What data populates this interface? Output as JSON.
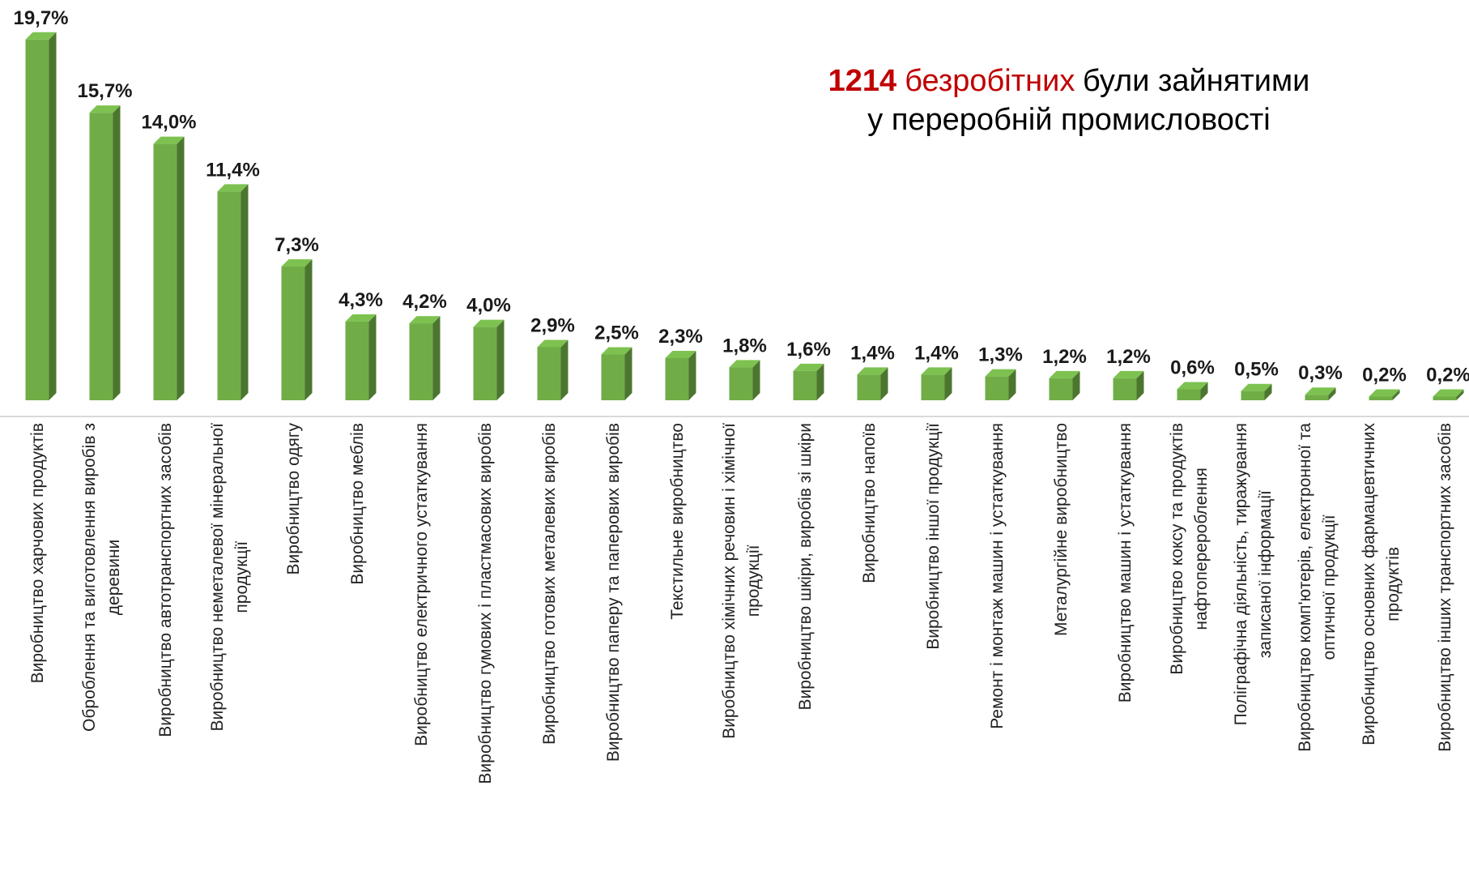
{
  "chart_data": {
    "type": "bar3d",
    "title_parts": [
      "1214",
      "безробітних",
      "були зайнятими",
      "у переробній промисловості"
    ],
    "title_colors": [
      "#c00000",
      "#c00000",
      "#000000",
      "#000000"
    ],
    "color": "#70ad47",
    "categories": [
      "Виробництво харчових продуктів",
      "Оброблення та виготовлення виробів з\nдеревини",
      "Виробництво автотранспортних засобів",
      "Виробництво неметалевої мінеральної\nпродукції",
      "Виробництво одягу",
      "Виробництво меблів",
      "Виробництво електричного устаткування",
      "Виробництво гумових і пластмасових виробів",
      "Виробництво готових металевих виробів",
      "Виробництво паперу та паперових виробів",
      "Текстильне виробництво",
      "Виробництво хімічних речовин і хімічної\nпродукції",
      "Виробництво шкіри, виробів зі шкіри",
      "Виробництво напоїв",
      "Виробництво іншої продукції",
      "Ремонт і монтаж машин і устаткування",
      "Металургійне виробництво",
      "Виробництво машин і устаткування",
      "Виробництво коксу та продуктів\nнафтоперероблення",
      "Поліграфічна діяльність, тиражування\nзаписаної інформації",
      "Виробництво комп'ютерів, електронної та\nоптичної продукції",
      "Виробництво основних фармацевтичних\nпродуктів",
      "Виробництво інших транспортних засобів"
    ],
    "values": [
      19.7,
      15.7,
      14.0,
      11.4,
      7.3,
      4.3,
      4.2,
      4.0,
      2.9,
      2.5,
      2.3,
      1.8,
      1.6,
      1.4,
      1.4,
      1.3,
      1.2,
      1.2,
      0.6,
      0.5,
      0.3,
      0.2,
      0.2
    ],
    "value_labels": [
      "19,7%",
      "15,7%",
      "14,0%",
      "11,4%",
      "7,3%",
      "4,3%",
      "4,2%",
      "4,0%",
      "2,9%",
      "2,5%",
      "2,3%",
      "1,8%",
      "1,6%",
      "1,4%",
      "1,4%",
      "1,3%",
      "1,2%",
      "1,2%",
      "0,6%",
      "0,5%",
      "0,3%",
      "0,2%",
      "0,2%"
    ]
  }
}
